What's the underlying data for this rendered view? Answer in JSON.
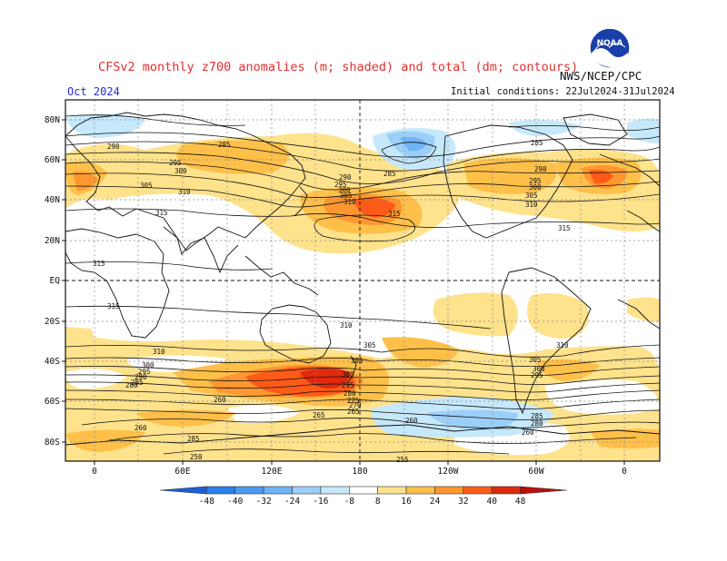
{
  "header": {
    "title": "CFSv2 monthly z700 anomalies (m; shaded) and total (dm; contours)",
    "org": "NWS/NCEP/CPC",
    "month": "Oct 2024",
    "initial_conditions": "Initial conditions: 22Jul2024-31Jul2024",
    "logo_text": "NOAA"
  },
  "axes": {
    "lat_labels": [
      "80N",
      "60N",
      "40N",
      "20N",
      "EQ",
      "20S",
      "40S",
      "60S",
      "80S"
    ],
    "lon_labels": [
      "0",
      "60E",
      "120E",
      "180",
      "120W",
      "60W",
      "0"
    ]
  },
  "colorbar": {
    "labels": [
      "-48",
      "-40",
      "-32",
      "-24",
      "-16",
      "-8",
      "8",
      "16",
      "24",
      "32",
      "40",
      "48"
    ],
    "colors": [
      "#1a5fd8",
      "#2b7fe8",
      "#4a9af0",
      "#6fb4f4",
      "#9ccff8",
      "#c6e8fb",
      "#ffffff",
      "#ffe28c",
      "#ffc04a",
      "#ff9630",
      "#ff5a18",
      "#e02a0e",
      "#b80e0e"
    ]
  },
  "contour_labels": [
    {
      "text": "290"
    },
    {
      "text": "295"
    },
    {
      "text": "300"
    },
    {
      "text": "305"
    },
    {
      "text": "310"
    },
    {
      "text": "315"
    },
    {
      "text": "285"
    },
    {
      "text": "290"
    },
    {
      "text": "295"
    },
    {
      "text": "300"
    },
    {
      "text": "305"
    },
    {
      "text": "310"
    },
    {
      "text": "315"
    },
    {
      "text": "285"
    },
    {
      "text": "290"
    },
    {
      "text": "295"
    },
    {
      "text": "300"
    },
    {
      "text": "305"
    },
    {
      "text": "310"
    },
    {
      "text": "315"
    },
    {
      "text": "315"
    },
    {
      "text": "315"
    },
    {
      "text": "310"
    },
    {
      "text": "305"
    },
    {
      "text": "310"
    },
    {
      "text": "300"
    },
    {
      "text": "295"
    },
    {
      "text": "290"
    },
    {
      "text": "285"
    },
    {
      "text": "280"
    },
    {
      "text": "260"
    },
    {
      "text": "260"
    },
    {
      "text": "285"
    },
    {
      "text": "265"
    },
    {
      "text": "305"
    },
    {
      "text": "300"
    },
    {
      "text": "295"
    },
    {
      "text": "280"
    },
    {
      "text": "275"
    },
    {
      "text": "270"
    },
    {
      "text": "265"
    },
    {
      "text": "260"
    },
    {
      "text": "255"
    },
    {
      "text": "250"
    },
    {
      "text": "310"
    },
    {
      "text": "305"
    },
    {
      "text": "300"
    },
    {
      "text": "295"
    },
    {
      "text": "285"
    },
    {
      "text": "280"
    },
    {
      "text": "260"
    },
    {
      "text": "285"
    }
  ]
}
